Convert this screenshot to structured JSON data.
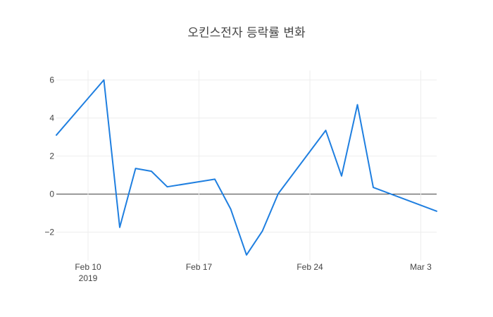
{
  "chart_data": {
    "type": "line",
    "title": "오킨스전자 등락률 변화",
    "xlabel": "",
    "ylabel": "",
    "x_tick_labels": [
      {
        "date": "2019-02-10",
        "label": "Feb 10",
        "sublabel": "2019"
      },
      {
        "date": "2019-02-17",
        "label": "Feb 17",
        "sublabel": ""
      },
      {
        "date": "2019-02-24",
        "label": "Feb 24",
        "sublabel": ""
      },
      {
        "date": "2019-03-03",
        "label": "Mar 3",
        "sublabel": ""
      }
    ],
    "y_tick_labels": [
      "−2",
      "0",
      "2",
      "4",
      "6"
    ],
    "y_ticks": [
      -2,
      0,
      2,
      4,
      6
    ],
    "xlim": [
      "2019-02-08",
      "2019-03-04"
    ],
    "ylim": [
      -3.5,
      6.5
    ],
    "grid": true,
    "line_color": "#1f7fe0",
    "series": [
      {
        "name": "",
        "x": [
          "2019-02-08",
          "2019-02-11",
          "2019-02-12",
          "2019-02-13",
          "2019-02-14",
          "2019-02-15",
          "2019-02-18",
          "2019-02-19",
          "2019-02-20",
          "2019-02-21",
          "2019-02-22",
          "2019-02-25",
          "2019-02-26",
          "2019-02-27",
          "2019-02-28",
          "2019-03-04"
        ],
        "values": [
          3.1,
          6.0,
          -1.75,
          1.35,
          1.2,
          0.38,
          0.78,
          -0.78,
          -3.2,
          -1.95,
          0.02,
          3.35,
          0.95,
          4.7,
          0.35,
          -0.9
        ]
      }
    ]
  }
}
